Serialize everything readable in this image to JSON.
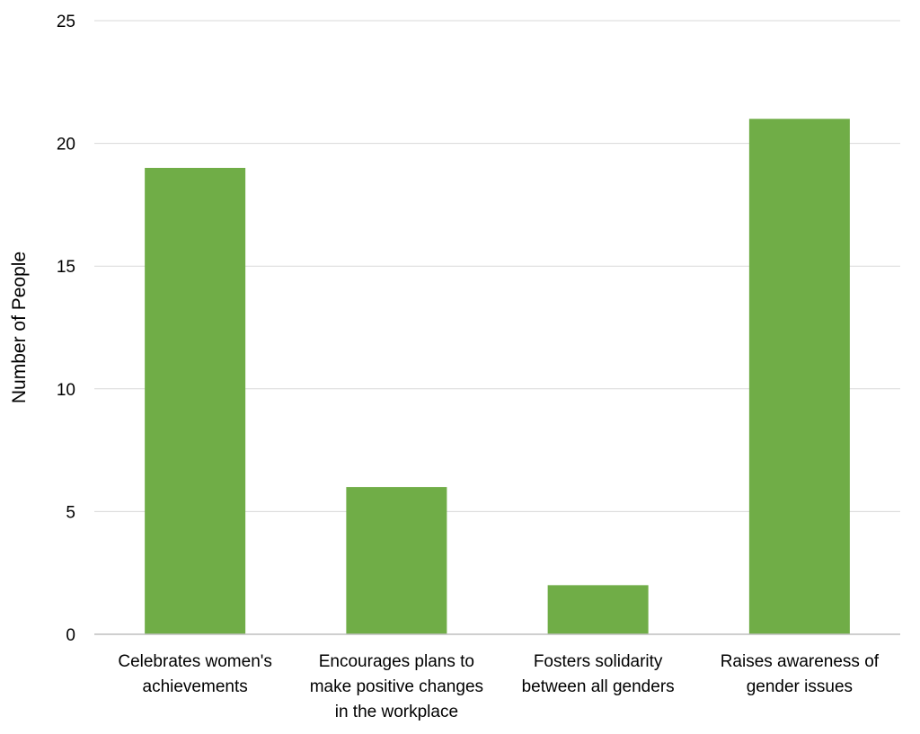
{
  "chart_data": {
    "type": "bar",
    "title": "",
    "xlabel": "",
    "ylabel": "Number of People",
    "ylim": [
      0,
      25
    ],
    "yticks": [
      0,
      5,
      10,
      15,
      20,
      25
    ],
    "grid": true,
    "legend": "none",
    "categories": [
      [
        "Celebrates women's",
        "achievements"
      ],
      [
        "Encourages plans to",
        "make positive changes",
        "in the workplace"
      ],
      [
        "Fosters solidarity",
        "between all genders"
      ],
      [
        "Raises awareness of",
        "gender issues"
      ]
    ],
    "series": [
      {
        "name": "Number of People",
        "values": [
          19,
          6,
          2,
          21
        ]
      }
    ],
    "colors": {
      "bar": "#70AD47",
      "grid": "#D9D9D9",
      "axis": "#BFBFBF"
    }
  }
}
